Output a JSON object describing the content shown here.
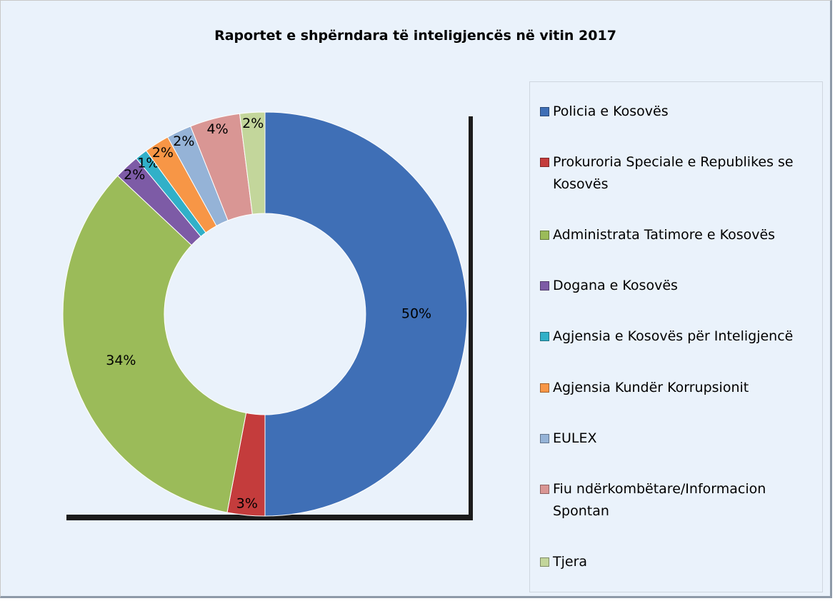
{
  "chart_data": {
    "type": "donut",
    "title": "Raportet e shpërndara të inteligjencës në vitin 2017",
    "categories": [
      "Policia e Kosovës",
      "Prokuroria Speciale e Republikes se Kosovës",
      "Administrata Tatimore e Kosovës",
      "Dogana e Kosovës",
      "Agjensia e Kosovës për Inteligjencë",
      "Agjensia Kundër Korrupsionit",
      "EULEX",
      "Fiu ndërkombëtare/Informacion Spontan",
      "Tjera"
    ],
    "values": [
      50,
      3,
      34,
      2,
      1,
      2,
      2,
      4,
      2
    ],
    "value_labels": [
      "50%",
      "3%",
      "34%",
      "2%",
      "1%",
      "2%",
      "2%",
      "4%",
      "2%"
    ],
    "colors": [
      "#3f6fb6",
      "#c43c3c",
      "#9bbb59",
      "#7d5ba6",
      "#31b0c8",
      "#f79646",
      "#95b3d7",
      "#d99694",
      "#c3d69b"
    ],
    "legend": "right"
  }
}
